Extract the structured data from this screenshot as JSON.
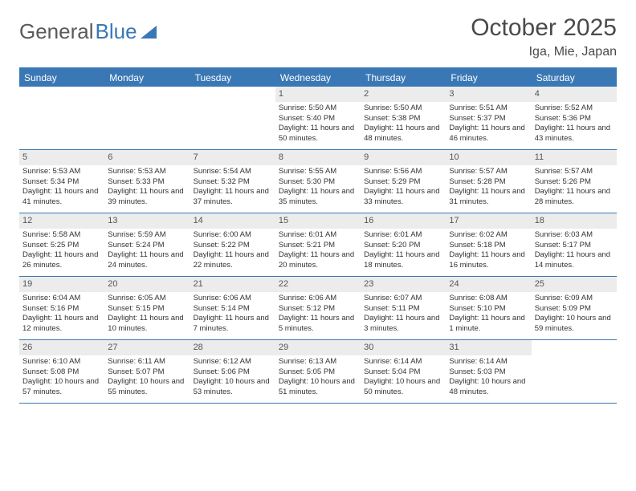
{
  "brand": {
    "part1": "General",
    "part2": "Blue"
  },
  "title": "October 2025",
  "location": "Iga, Mie, Japan",
  "colors": {
    "accent": "#3a78b5",
    "header_text": "#ffffff",
    "daynum_bg": "#ececec",
    "text": "#333333",
    "muted": "#5a5a5a"
  },
  "weekdays": [
    "Sunday",
    "Monday",
    "Tuesday",
    "Wednesday",
    "Thursday",
    "Friday",
    "Saturday"
  ],
  "weeks": [
    [
      {
        "n": "",
        "sr": "",
        "ss": "",
        "dl": ""
      },
      {
        "n": "",
        "sr": "",
        "ss": "",
        "dl": ""
      },
      {
        "n": "",
        "sr": "",
        "ss": "",
        "dl": ""
      },
      {
        "n": "1",
        "sr": "Sunrise: 5:50 AM",
        "ss": "Sunset: 5:40 PM",
        "dl": "Daylight: 11 hours and 50 minutes."
      },
      {
        "n": "2",
        "sr": "Sunrise: 5:50 AM",
        "ss": "Sunset: 5:38 PM",
        "dl": "Daylight: 11 hours and 48 minutes."
      },
      {
        "n": "3",
        "sr": "Sunrise: 5:51 AM",
        "ss": "Sunset: 5:37 PM",
        "dl": "Daylight: 11 hours and 46 minutes."
      },
      {
        "n": "4",
        "sr": "Sunrise: 5:52 AM",
        "ss": "Sunset: 5:36 PM",
        "dl": "Daylight: 11 hours and 43 minutes."
      }
    ],
    [
      {
        "n": "5",
        "sr": "Sunrise: 5:53 AM",
        "ss": "Sunset: 5:34 PM",
        "dl": "Daylight: 11 hours and 41 minutes."
      },
      {
        "n": "6",
        "sr": "Sunrise: 5:53 AM",
        "ss": "Sunset: 5:33 PM",
        "dl": "Daylight: 11 hours and 39 minutes."
      },
      {
        "n": "7",
        "sr": "Sunrise: 5:54 AM",
        "ss": "Sunset: 5:32 PM",
        "dl": "Daylight: 11 hours and 37 minutes."
      },
      {
        "n": "8",
        "sr": "Sunrise: 5:55 AM",
        "ss": "Sunset: 5:30 PM",
        "dl": "Daylight: 11 hours and 35 minutes."
      },
      {
        "n": "9",
        "sr": "Sunrise: 5:56 AM",
        "ss": "Sunset: 5:29 PM",
        "dl": "Daylight: 11 hours and 33 minutes."
      },
      {
        "n": "10",
        "sr": "Sunrise: 5:57 AM",
        "ss": "Sunset: 5:28 PM",
        "dl": "Daylight: 11 hours and 31 minutes."
      },
      {
        "n": "11",
        "sr": "Sunrise: 5:57 AM",
        "ss": "Sunset: 5:26 PM",
        "dl": "Daylight: 11 hours and 28 minutes."
      }
    ],
    [
      {
        "n": "12",
        "sr": "Sunrise: 5:58 AM",
        "ss": "Sunset: 5:25 PM",
        "dl": "Daylight: 11 hours and 26 minutes."
      },
      {
        "n": "13",
        "sr": "Sunrise: 5:59 AM",
        "ss": "Sunset: 5:24 PM",
        "dl": "Daylight: 11 hours and 24 minutes."
      },
      {
        "n": "14",
        "sr": "Sunrise: 6:00 AM",
        "ss": "Sunset: 5:22 PM",
        "dl": "Daylight: 11 hours and 22 minutes."
      },
      {
        "n": "15",
        "sr": "Sunrise: 6:01 AM",
        "ss": "Sunset: 5:21 PM",
        "dl": "Daylight: 11 hours and 20 minutes."
      },
      {
        "n": "16",
        "sr": "Sunrise: 6:01 AM",
        "ss": "Sunset: 5:20 PM",
        "dl": "Daylight: 11 hours and 18 minutes."
      },
      {
        "n": "17",
        "sr": "Sunrise: 6:02 AM",
        "ss": "Sunset: 5:18 PM",
        "dl": "Daylight: 11 hours and 16 minutes."
      },
      {
        "n": "18",
        "sr": "Sunrise: 6:03 AM",
        "ss": "Sunset: 5:17 PM",
        "dl": "Daylight: 11 hours and 14 minutes."
      }
    ],
    [
      {
        "n": "19",
        "sr": "Sunrise: 6:04 AM",
        "ss": "Sunset: 5:16 PM",
        "dl": "Daylight: 11 hours and 12 minutes."
      },
      {
        "n": "20",
        "sr": "Sunrise: 6:05 AM",
        "ss": "Sunset: 5:15 PM",
        "dl": "Daylight: 11 hours and 10 minutes."
      },
      {
        "n": "21",
        "sr": "Sunrise: 6:06 AM",
        "ss": "Sunset: 5:14 PM",
        "dl": "Daylight: 11 hours and 7 minutes."
      },
      {
        "n": "22",
        "sr": "Sunrise: 6:06 AM",
        "ss": "Sunset: 5:12 PM",
        "dl": "Daylight: 11 hours and 5 minutes."
      },
      {
        "n": "23",
        "sr": "Sunrise: 6:07 AM",
        "ss": "Sunset: 5:11 PM",
        "dl": "Daylight: 11 hours and 3 minutes."
      },
      {
        "n": "24",
        "sr": "Sunrise: 6:08 AM",
        "ss": "Sunset: 5:10 PM",
        "dl": "Daylight: 11 hours and 1 minute."
      },
      {
        "n": "25",
        "sr": "Sunrise: 6:09 AM",
        "ss": "Sunset: 5:09 PM",
        "dl": "Daylight: 10 hours and 59 minutes."
      }
    ],
    [
      {
        "n": "26",
        "sr": "Sunrise: 6:10 AM",
        "ss": "Sunset: 5:08 PM",
        "dl": "Daylight: 10 hours and 57 minutes."
      },
      {
        "n": "27",
        "sr": "Sunrise: 6:11 AM",
        "ss": "Sunset: 5:07 PM",
        "dl": "Daylight: 10 hours and 55 minutes."
      },
      {
        "n": "28",
        "sr": "Sunrise: 6:12 AM",
        "ss": "Sunset: 5:06 PM",
        "dl": "Daylight: 10 hours and 53 minutes."
      },
      {
        "n": "29",
        "sr": "Sunrise: 6:13 AM",
        "ss": "Sunset: 5:05 PM",
        "dl": "Daylight: 10 hours and 51 minutes."
      },
      {
        "n": "30",
        "sr": "Sunrise: 6:14 AM",
        "ss": "Sunset: 5:04 PM",
        "dl": "Daylight: 10 hours and 50 minutes."
      },
      {
        "n": "31",
        "sr": "Sunrise: 6:14 AM",
        "ss": "Sunset: 5:03 PM",
        "dl": "Daylight: 10 hours and 48 minutes."
      },
      {
        "n": "",
        "sr": "",
        "ss": "",
        "dl": ""
      }
    ]
  ]
}
